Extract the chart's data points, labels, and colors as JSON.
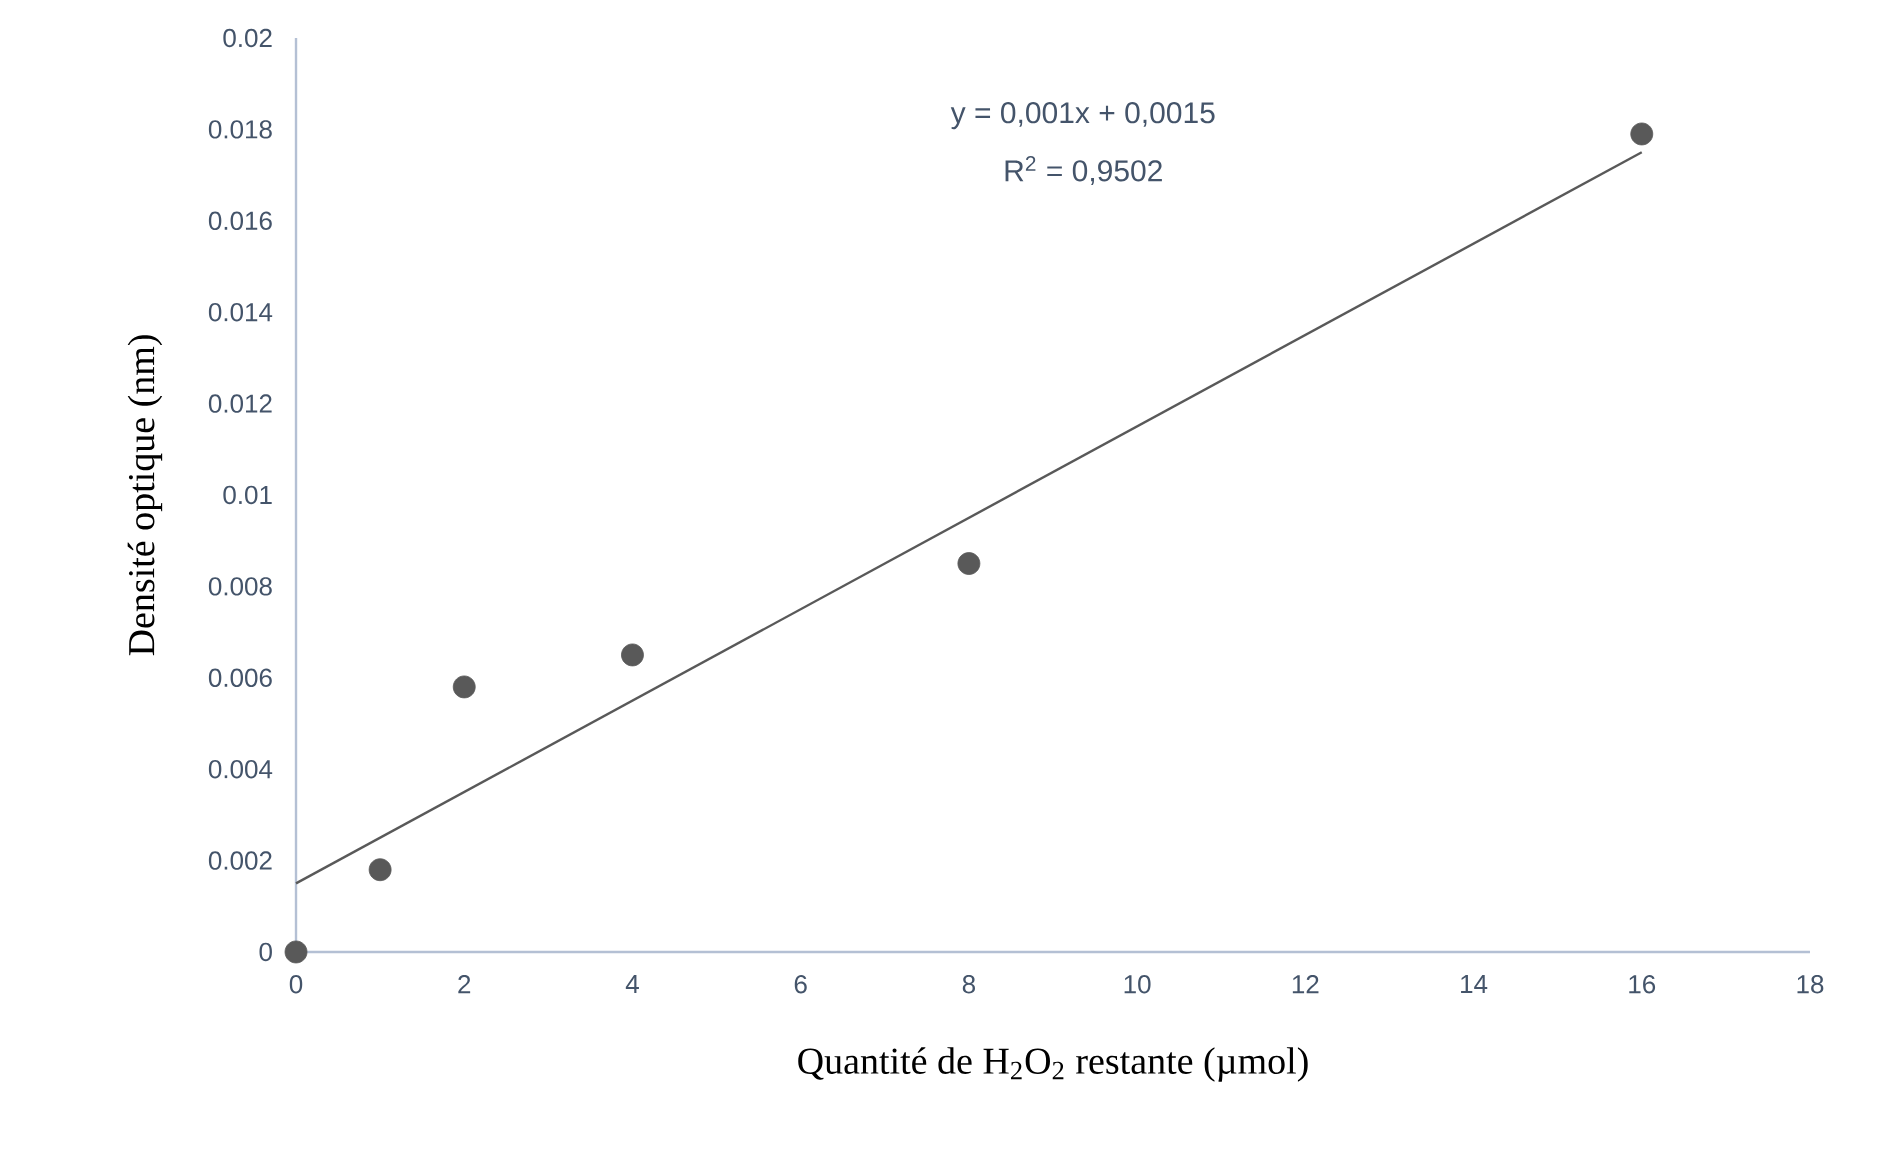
{
  "chart_data": {
    "type": "scatter",
    "xlabel": "Quantité de H$_{2}$O$_{2}$ restante (µmol)",
    "ylabel": "Densité optique (nm)",
    "annotations": [
      "y = 0,001x + 0,0015",
      "R$^{2}$ = 0,9502"
    ],
    "series": [
      {
        "color": "#595959",
        "marker": "circle",
        "x": [
          0,
          1,
          2,
          4,
          8,
          16
        ],
        "values": [
          0,
          0.0018,
          0.0058,
          0.0065,
          0.0085,
          0.0179
        ]
      },
      {
        "type": "line",
        "color": "#595959",
        "marker": "none",
        "line_style": "solid",
        "x": [
          0,
          16
        ],
        "values": [
          0.0015,
          0.0175
        ]
      }
    ],
    "xlim": [
      0,
      18
    ],
    "ylim": [
      0,
      0.02
    ],
    "xticks": [
      0,
      2,
      4,
      6,
      8,
      10,
      12,
      14,
      16,
      18
    ],
    "yticks": [
      0,
      0.002,
      0.004,
      0.006,
      0.008,
      0.01,
      0.012,
      0.014,
      0.016,
      0.018,
      0.02
    ],
    "grid": false
  }
}
